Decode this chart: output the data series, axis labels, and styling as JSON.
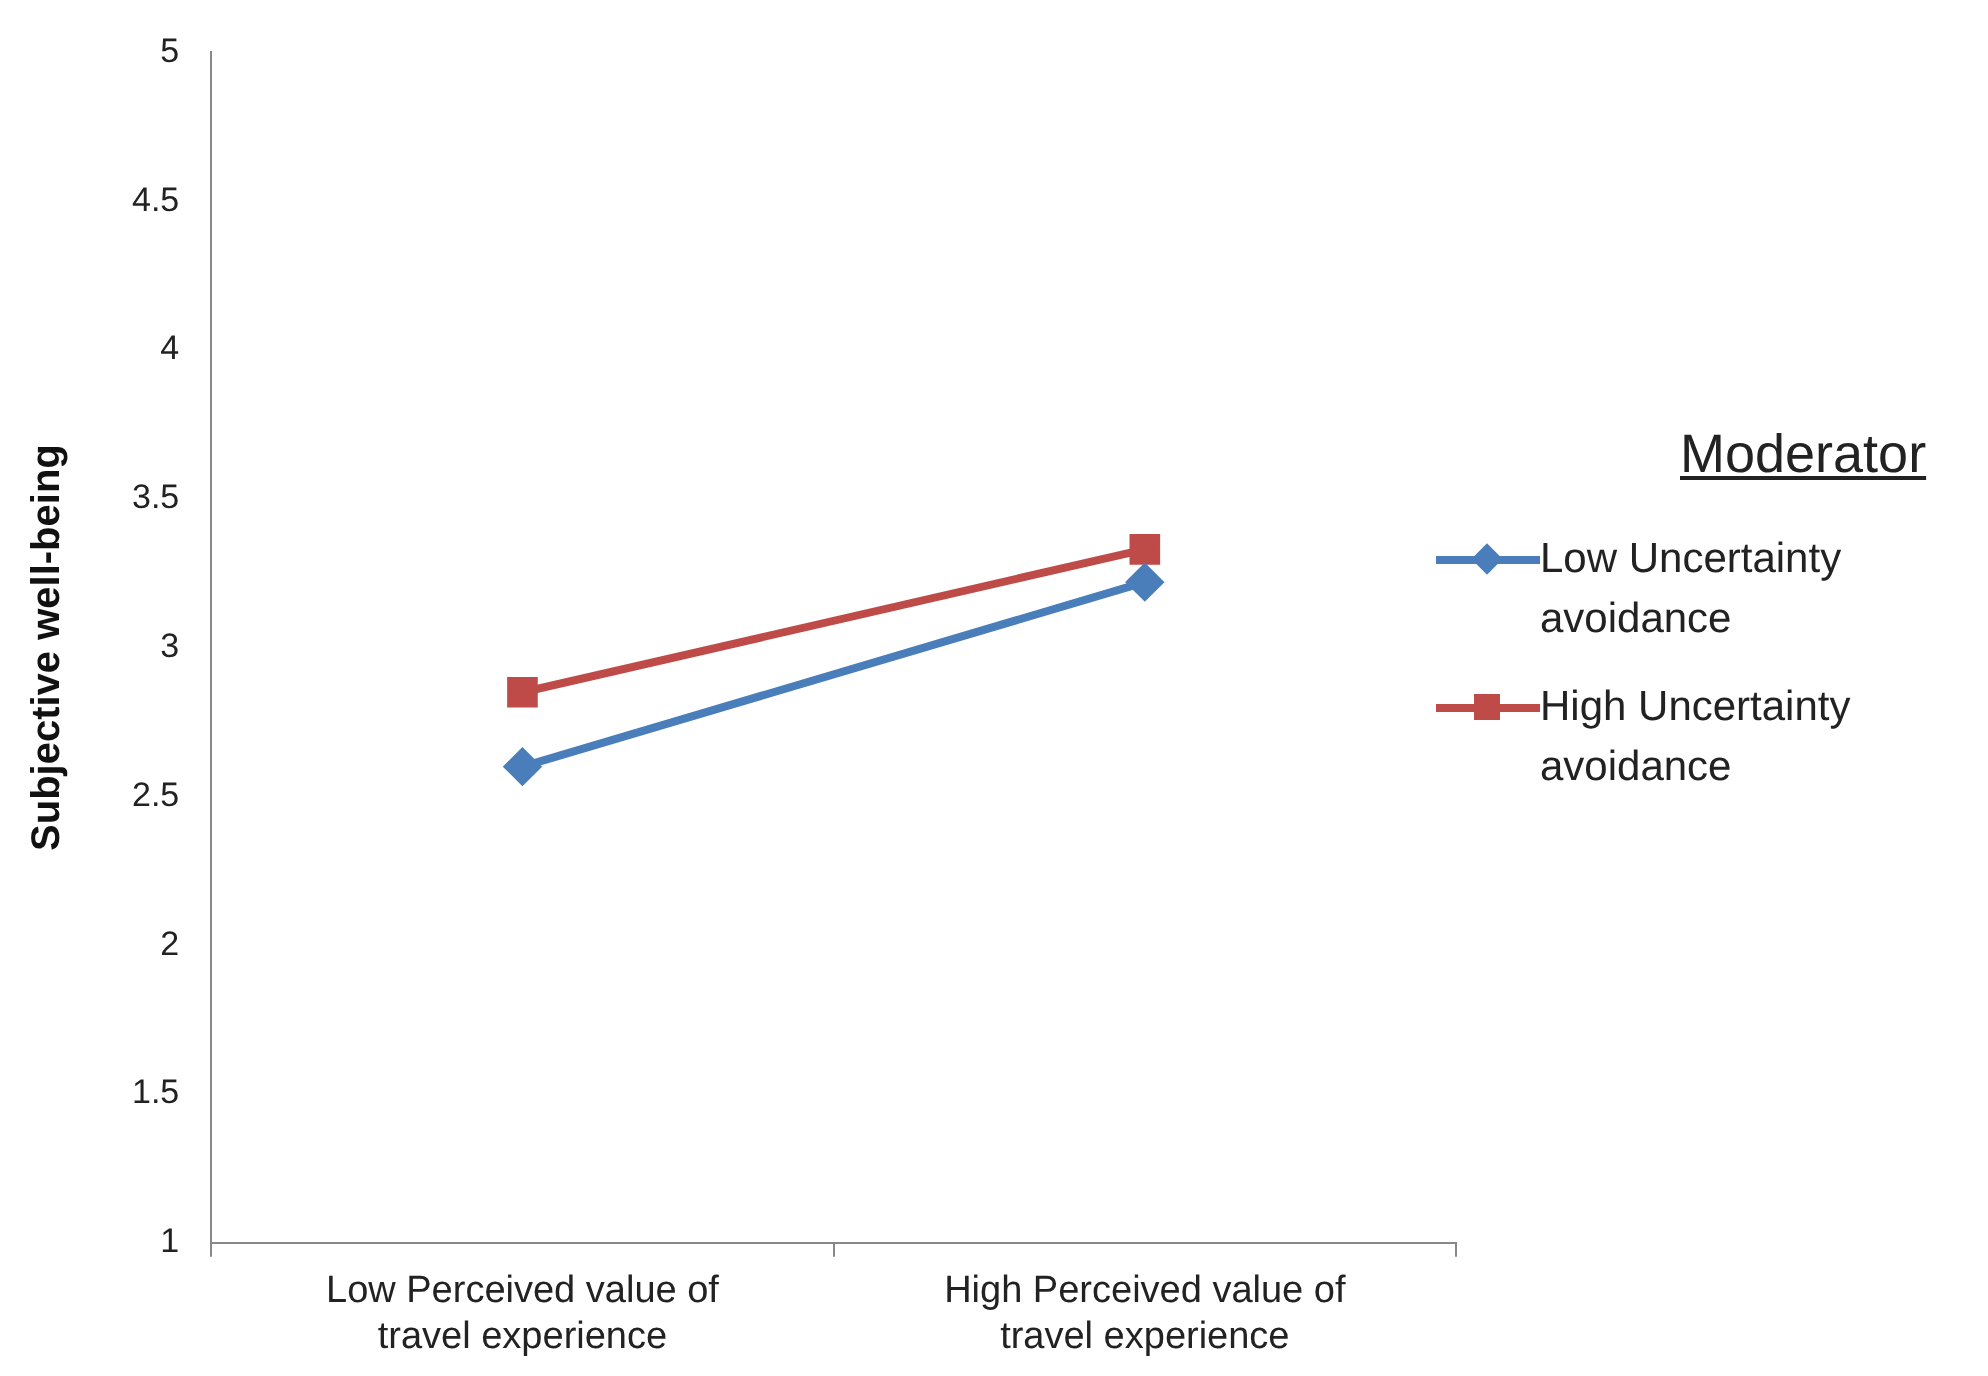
{
  "chart_data": {
    "type": "line",
    "ylabel": "Subjective well-being",
    "legend_title": "Moderator",
    "legend": "right",
    "grid": false,
    "categories": [
      "Low Perceived value of travel experience",
      "High Perceived value of travel experience"
    ],
    "series": [
      {
        "name": "Low Uncertainty avoidance",
        "color": "#4a7ebb",
        "marker": "diamond",
        "values": [
          2.6,
          3.22
        ]
      },
      {
        "name": "High Uncertainty avoidance",
        "color": "#be4b48",
        "marker": "square",
        "values": [
          2.85,
          3.33
        ]
      }
    ],
    "ylim": [
      1,
      5
    ],
    "yticks": [
      1,
      1.5,
      2,
      2.5,
      3,
      3.5,
      4,
      4.5,
      5
    ]
  }
}
